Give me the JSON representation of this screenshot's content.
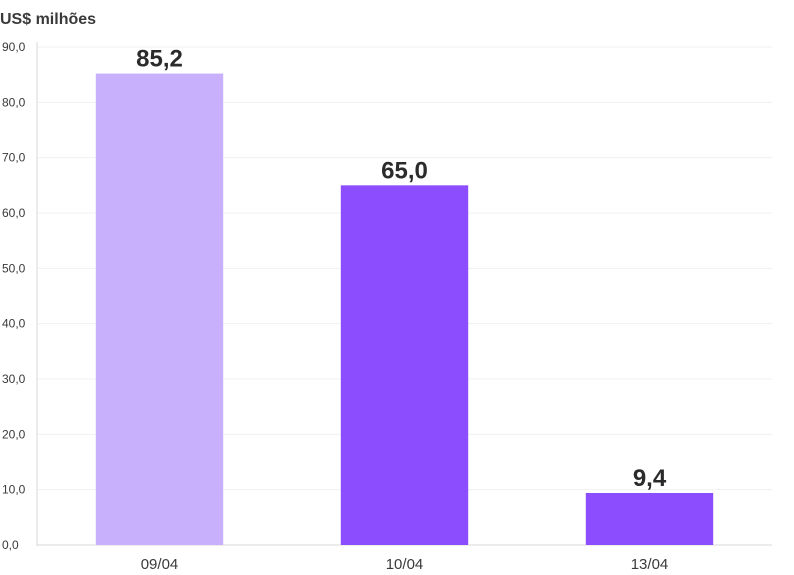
{
  "chart_data": {
    "type": "bar",
    "ylabel": "US$ milhões",
    "categories": [
      "09/04",
      "10/04",
      "13/04"
    ],
    "values": [
      85.2,
      65.0,
      9.4
    ],
    "data_labels": [
      "85,2",
      "65,0",
      "9,4"
    ],
    "ylim": [
      0,
      90
    ],
    "yticks": [
      0,
      10,
      20,
      30,
      40,
      50,
      60,
      70,
      80,
      90
    ],
    "ytick_labels": [
      "0,0",
      "10,0",
      "20,0",
      "30,0",
      "40,0",
      "50,0",
      "60,0",
      "70,0",
      "80,0",
      "90,0"
    ],
    "bar_colors": [
      "#c8b0fc",
      "#8b4dfd",
      "#8b4dfd"
    ],
    "grid": true,
    "legend": "none"
  }
}
